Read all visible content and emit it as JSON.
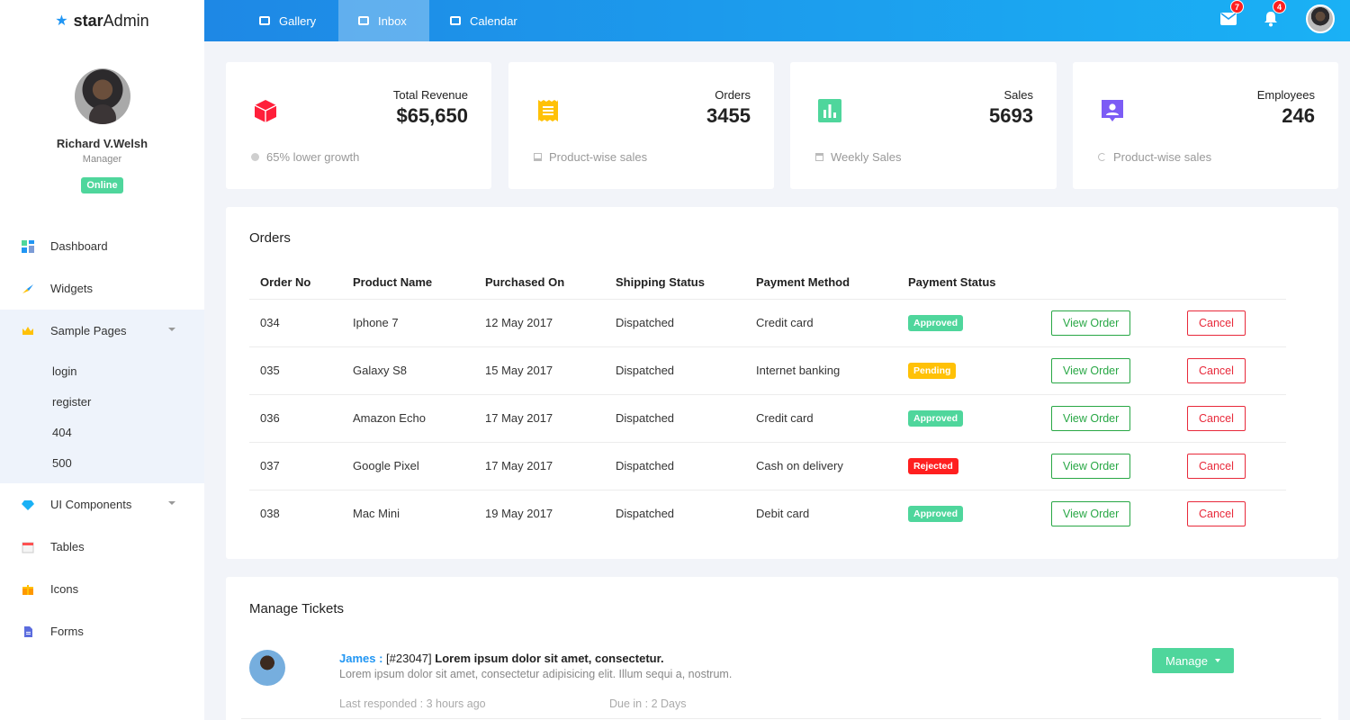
{
  "brand": {
    "prefix": "star",
    "suffix": "Admin"
  },
  "profile": {
    "name": "Richard V.Welsh",
    "role": "Manager",
    "status": "Online"
  },
  "nav": {
    "items": [
      {
        "label": "Dashboard",
        "icon": "dashboard-icon"
      },
      {
        "label": "Widgets",
        "icon": "widgets-icon"
      },
      {
        "label": "Sample Pages",
        "icon": "crown-icon"
      },
      {
        "label": "UI Components",
        "icon": "diamond-icon"
      },
      {
        "label": "Tables",
        "icon": "calendar-icon"
      },
      {
        "label": "Icons",
        "icon": "gift-icon"
      },
      {
        "label": "Forms",
        "icon": "document-icon"
      }
    ],
    "sub_items": [
      "login",
      "register",
      "404",
      "500"
    ]
  },
  "header": {
    "tabs": [
      {
        "label": "Gallery"
      },
      {
        "label": "Inbox"
      },
      {
        "label": "Calendar"
      }
    ],
    "mail_count": "7",
    "notification_count": "4"
  },
  "stats": [
    {
      "label": "Total Revenue",
      "value": "$65,650",
      "footnote": "65% lower growth",
      "icon": "cube-icon",
      "color": "#ff1f3a"
    },
    {
      "label": "Orders",
      "value": "3455",
      "footnote": "Product-wise sales",
      "icon": "receipt-icon",
      "color": "#ffc107"
    },
    {
      "label": "Sales",
      "value": "5693",
      "footnote": "Weekly Sales",
      "icon": "bar-chart-icon",
      "color": "#4fd69c"
    },
    {
      "label": "Employees",
      "value": "246",
      "footnote": "Product-wise sales",
      "icon": "user-badge-icon",
      "color": "#7c5cf5"
    }
  ],
  "orders": {
    "title": "Orders",
    "columns": [
      "Order No",
      "Product Name",
      "Purchased On",
      "Shipping Status",
      "Payment Method",
      "Payment Status"
    ],
    "view_label": "View Order",
    "cancel_label": "Cancel",
    "rows": [
      {
        "no": "034",
        "product": "Iphone 7",
        "date": "12 May 2017",
        "shipping": "Dispatched",
        "method": "Credit card",
        "status": "Approved",
        "status_color": "#4fd69c"
      },
      {
        "no": "035",
        "product": "Galaxy S8",
        "date": "15 May 2017",
        "shipping": "Dispatched",
        "method": "Internet banking",
        "status": "Pending",
        "status_color": "#ffc107"
      },
      {
        "no": "036",
        "product": "Amazon Echo",
        "date": "17 May 2017",
        "shipping": "Dispatched",
        "method": "Credit card",
        "status": "Approved",
        "status_color": "#4fd69c"
      },
      {
        "no": "037",
        "product": "Google Pixel",
        "date": "17 May 2017",
        "shipping": "Dispatched",
        "method": "Cash on delivery",
        "status": "Rejected",
        "status_color": "#ff1f1f"
      },
      {
        "no": "038",
        "product": "Mac Mini",
        "date": "19 May 2017",
        "shipping": "Dispatched",
        "method": "Debit card",
        "status": "Approved",
        "status_color": "#4fd69c"
      }
    ]
  },
  "tickets": {
    "title": "Manage Tickets",
    "item": {
      "name": "James :",
      "ticket_id": "[#23047]",
      "subject": "Lorem ipsum dolor sit amet, consectetur.",
      "body": "Lorem ipsum dolor sit amet, consectetur adipisicing elit. Illum sequi a, nostrum.",
      "last_responded_label": "Last responded :",
      "last_responded_value": "3 hours ago",
      "due_label": "Due in :",
      "due_value": "2 Days",
      "manage_label": "Manage"
    }
  }
}
